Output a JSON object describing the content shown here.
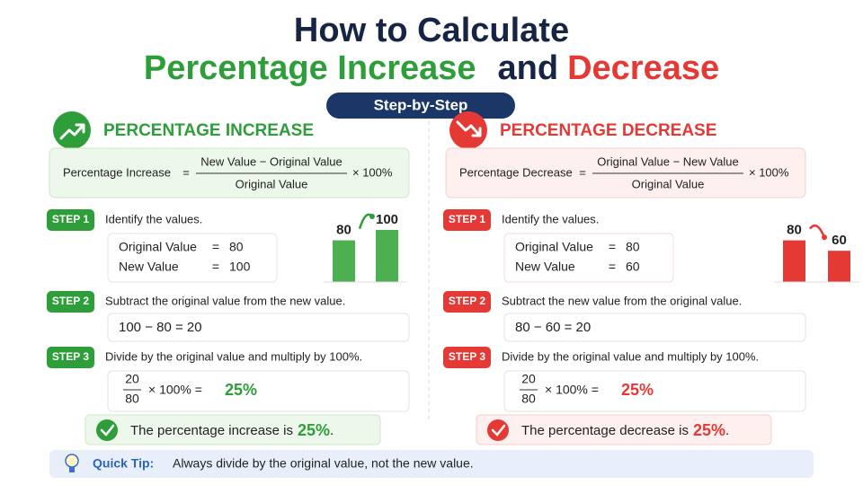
{
  "title": {
    "line1": "How to Calculate",
    "increase": "Percentage Increase",
    "and": "and",
    "decrease": "Decrease"
  },
  "badge": "Step-by-Step",
  "panels": [
    {
      "heading": "PERCENTAGE INCREASE",
      "accent": "#2e9e3a",
      "tint": "#eef7ec",
      "formula": {
        "lhs": "Percentage Increase",
        "eq": "=",
        "numerator": "New Value − Original Value",
        "denominator": "Original Value",
        "times": "× 100%"
      },
      "steps": [
        {
          "label": "STEP 1",
          "text": "Identify the values.",
          "rows": [
            [
              "Original Value",
              "=",
              "80"
            ],
            [
              "New Value",
              "=",
              "100"
            ]
          ]
        },
        {
          "label": "STEP 2",
          "text": "Subtract the original value from the new value.",
          "calc": "100 − 80 = 20"
        },
        {
          "label": "STEP 3",
          "text": "Divide by the original value and multiply by 100%.",
          "num": "20",
          "den": "80",
          "calc": "× 100% =",
          "result": "25%"
        }
      ],
      "bars": {
        "values": [
          80,
          100
        ],
        "color": "#4caf50"
      },
      "conclusion": {
        "text": "The percentage increase is",
        "result": "25%",
        "end": "."
      }
    },
    {
      "heading": "PERCENTAGE DECREASE",
      "accent": "#e53935",
      "tint": "#fdf0ef",
      "formula": {
        "lhs": "Percentage Decrease",
        "eq": "=",
        "numerator": "Original Value − New Value",
        "denominator": "Original Value",
        "times": "× 100%"
      },
      "steps": [
        {
          "label": "STEP 1",
          "text": "Identify the values.",
          "rows": [
            [
              "Original Value",
              "=",
              "80"
            ],
            [
              "New Value",
              "=",
              "60"
            ]
          ]
        },
        {
          "label": "STEP 2",
          "text": "Subtract the new value from the original value.",
          "calc": "80 − 60 = 20"
        },
        {
          "label": "STEP 3",
          "text": "Divide by the original value and multiply by 100%.",
          "num": "20",
          "den": "80",
          "calc": "× 100% =",
          "result": "25%"
        }
      ],
      "bars": {
        "values": [
          80,
          60
        ],
        "color": "#e53935"
      },
      "conclusion": {
        "text": "The percentage decrease is",
        "result": "25%",
        "end": "."
      }
    }
  ],
  "tip": {
    "label": "Quick Tip:",
    "text": "Always divide by the original value, not the new value."
  }
}
